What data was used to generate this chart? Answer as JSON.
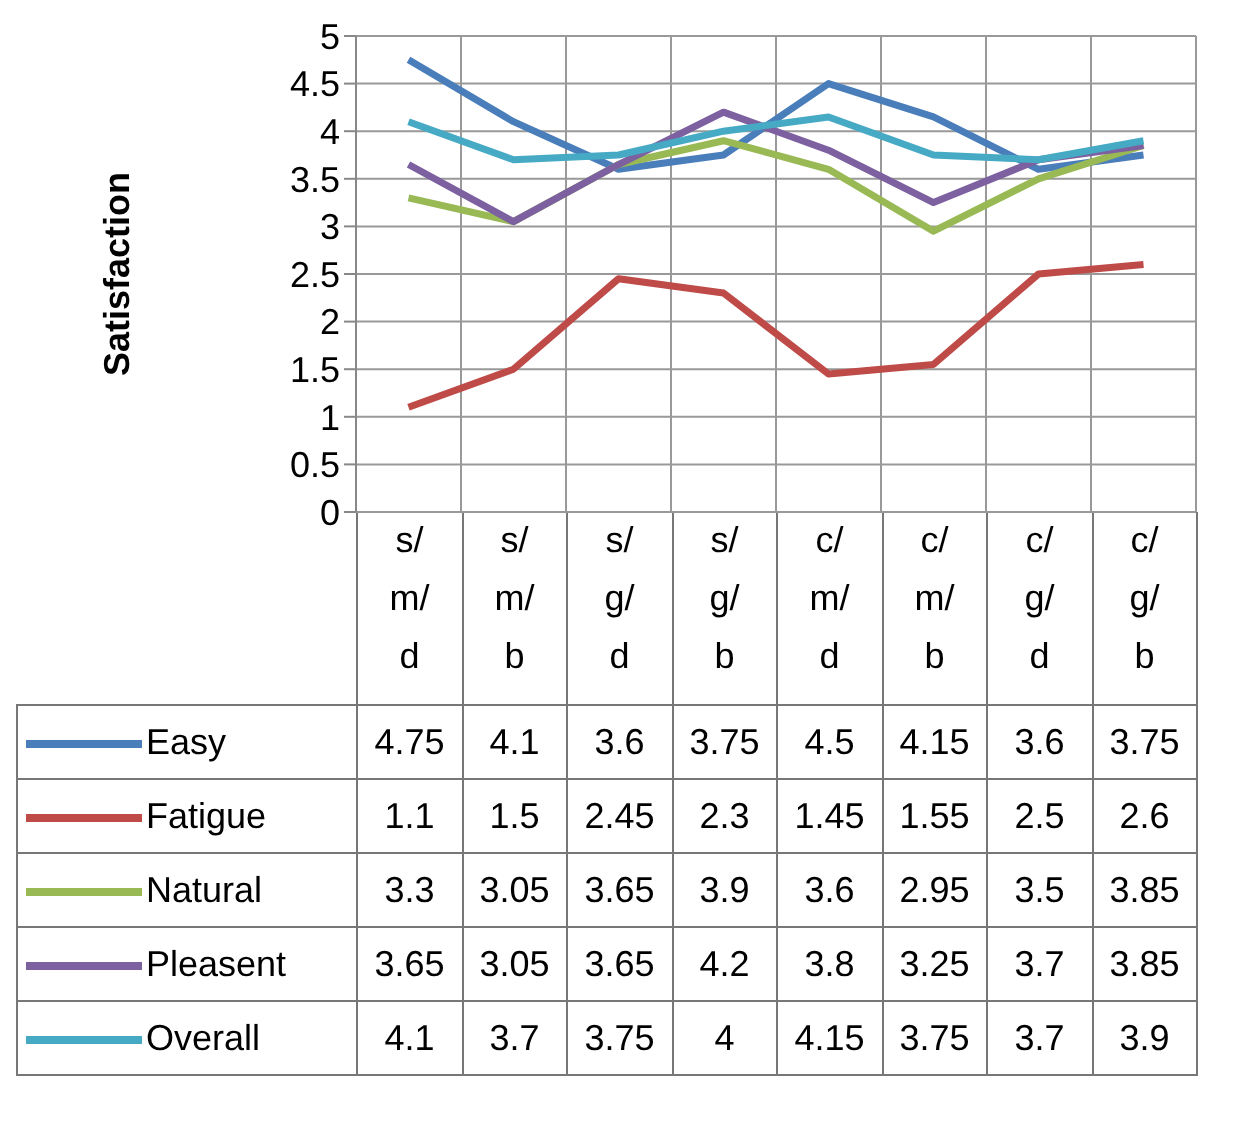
{
  "chart_data": {
    "type": "line",
    "ylabel": "Satisfaction",
    "categories": [
      "s/m/d",
      "s/m/b",
      "s/g/d",
      "s/g/b",
      "c/m/d",
      "c/m/b",
      "c/g/d",
      "c/g/b"
    ],
    "series": [
      {
        "name": "Easy",
        "color": "#4a7ebb",
        "values": [
          4.75,
          4.1,
          3.6,
          3.75,
          4.5,
          4.15,
          3.6,
          3.75
        ]
      },
      {
        "name": "Fatigue",
        "color": "#be4b48",
        "values": [
          1.1,
          1.5,
          2.45,
          2.3,
          1.45,
          1.55,
          2.5,
          2.6
        ]
      },
      {
        "name": "Natural",
        "color": "#98b954",
        "values": [
          3.3,
          3.05,
          3.65,
          3.9,
          3.6,
          2.95,
          3.5,
          3.85
        ]
      },
      {
        "name": "Pleasent",
        "color": "#7d60a0",
        "values": [
          3.65,
          3.05,
          3.65,
          4.2,
          3.8,
          3.25,
          3.7,
          3.85
        ]
      },
      {
        "name": "Overall",
        "color": "#46aac5",
        "values": [
          4.1,
          3.7,
          3.75,
          4,
          4.15,
          3.75,
          3.7,
          3.9
        ]
      }
    ],
    "ylim": [
      0,
      5
    ],
    "yticks": [
      0,
      0.5,
      1,
      1.5,
      2,
      2.5,
      3,
      3.5,
      4,
      4.5,
      5
    ],
    "grid": true,
    "legend": "bottom",
    "data_labels": true
  }
}
